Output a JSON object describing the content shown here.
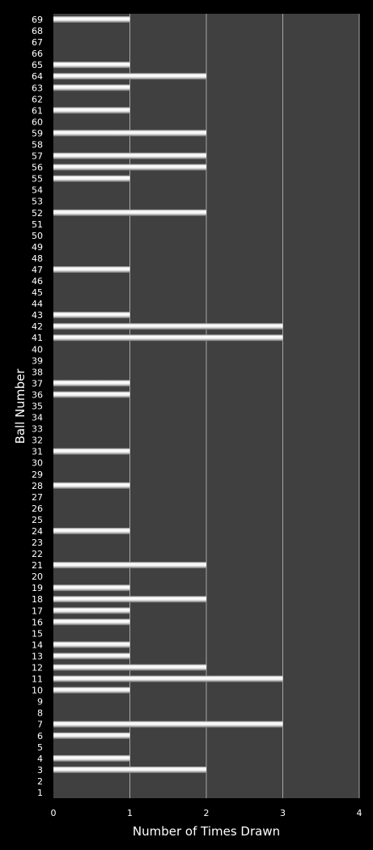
{
  "chart_data": {
    "type": "bar",
    "orientation": "horizontal",
    "xlabel": "Number of Times Drawn",
    "ylabel": "Ball Number",
    "xlim": [
      0,
      4
    ],
    "xticks": [
      "0",
      "1",
      "2",
      "3",
      "4"
    ],
    "grid": "vertical",
    "categories": [
      "1",
      "2",
      "3",
      "4",
      "5",
      "6",
      "7",
      "8",
      "9",
      "10",
      "11",
      "12",
      "13",
      "14",
      "15",
      "16",
      "17",
      "18",
      "19",
      "20",
      "21",
      "22",
      "23",
      "24",
      "25",
      "26",
      "27",
      "28",
      "29",
      "30",
      "31",
      "32",
      "33",
      "34",
      "35",
      "36",
      "37",
      "38",
      "39",
      "40",
      "41",
      "42",
      "43",
      "44",
      "45",
      "46",
      "47",
      "48",
      "49",
      "50",
      "51",
      "52",
      "53",
      "54",
      "55",
      "56",
      "57",
      "58",
      "59",
      "60",
      "61",
      "62",
      "63",
      "64",
      "65",
      "66",
      "67",
      "68",
      "69"
    ],
    "values": [
      0,
      0,
      2,
      1,
      0,
      1,
      3,
      0,
      0,
      1,
      3,
      2,
      1,
      1,
      0,
      1,
      1,
      2,
      1,
      0,
      2,
      0,
      0,
      1,
      0,
      0,
      0,
      1,
      0,
      0,
      1,
      0,
      0,
      0,
      0,
      1,
      1,
      0,
      0,
      0,
      3,
      3,
      1,
      0,
      0,
      0,
      1,
      0,
      0,
      0,
      0,
      2,
      0,
      0,
      1,
      2,
      2,
      0,
      2,
      0,
      1,
      0,
      1,
      2,
      1,
      0,
      0,
      0,
      1
    ],
    "colors": {
      "background": "#000000",
      "plot_area": "#404040",
      "gridline": "#a6a6a6",
      "bar": "#ffffff",
      "text": "#ffffff"
    }
  }
}
